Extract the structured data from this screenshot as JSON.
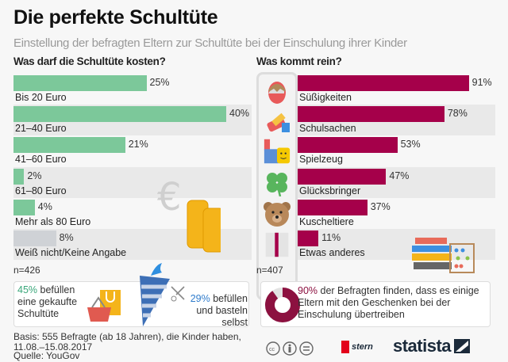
{
  "title": "Die perfekte Schultüte",
  "subtitle": "Einstellung der befragten Eltern zur Schultüte bei der Einschulung ihrer Kinder",
  "chart_data": [
    {
      "type": "bar",
      "orientation": "horizontal",
      "title": "Was darf die Schultüte kosten?",
      "categories": [
        "Bis 20 Euro",
        "21–40 Euro",
        "41–60 Euro",
        "61–80 Euro",
        "Mehr als 80 Euro",
        "Weiß nicht/Keine Angabe"
      ],
      "values": [
        25,
        40,
        21,
        2,
        4,
        8
      ],
      "value_labels": [
        "25%",
        "40%",
        "21%",
        "2%",
        "4%",
        "8%"
      ],
      "colors": [
        "#7cc89a",
        "#7cc89a",
        "#7cc89a",
        "#7cc89a",
        "#7cc89a",
        "#cfd2d6"
      ],
      "n": "n=426"
    },
    {
      "type": "bar",
      "orientation": "horizontal",
      "title": "Was kommt rein?",
      "categories": [
        "Süßigkeiten",
        "Schulsachen",
        "Spielzeug",
        "Glücksbringer",
        "Kuscheltiere",
        "Etwas anderes"
      ],
      "values": [
        91,
        78,
        53,
        47,
        37,
        11
      ],
      "value_labels": [
        "91%",
        "78%",
        "53%",
        "47%",
        "37%",
        "11%"
      ],
      "colors": [
        "#a5004a"
      ],
      "icons": [
        "egg-icon",
        "pencil-eraser-icon",
        "toy-blocks-icon",
        "clover-icon",
        "teddy-bear-icon",
        "gift-icon"
      ],
      "n": "n=407"
    }
  ],
  "notes": {
    "left_a_pct": "45%",
    "left_a_text": " befüllen eine gekaufte Schultüte",
    "left_b_pct": "29%",
    "left_b_text": " befüllen und basteln selbst",
    "right_pct": "90%",
    "right_text": " der Befragten finden, dass es einige Eltern mit den Geschenken bei der Einschulung übertreiben",
    "donut_value": 90
  },
  "colors": {
    "green": "#7cc89a",
    "gray": "#cfd2d6",
    "maroon": "#a5004a",
    "green_text": "#3aa77a",
    "blue_text": "#2f7ccc",
    "maroon_text": "#8c1140"
  },
  "footer": {
    "basis": "Basis: 555 Befragte (ab 18 Jahren), die Kinder haben, 11.08.–15.08.2017",
    "source": "Quelle: YouGov",
    "stern": "stern",
    "statista": "statista"
  }
}
